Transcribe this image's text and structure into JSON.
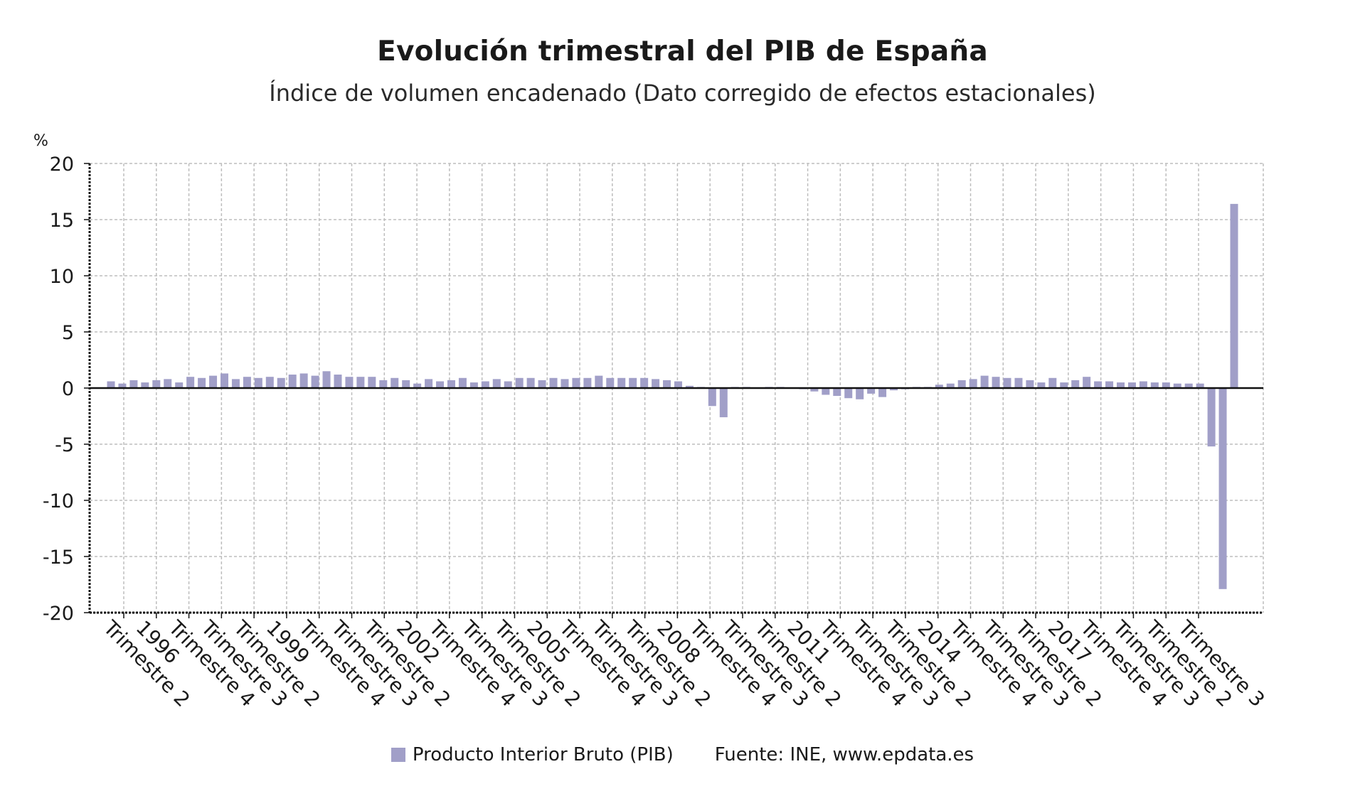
{
  "title": "Evolución trimestral del PIB de España",
  "subtitle": "Índice de volumen encadenado (Dato corregido de efectos estacionales)",
  "source": "Fuente: INE, www.epdata.es",
  "colors": {
    "bar": "#a19fc8",
    "grid": "#bdbdbd",
    "axis": "#111111"
  },
  "chart_data": {
    "type": "bar",
    "unit_label": "%",
    "ylim": [
      -20,
      20
    ],
    "y_ticks": [
      20,
      15,
      10,
      5,
      0,
      -5,
      -10,
      -15,
      -20
    ],
    "grid": true,
    "legend_position": "bottom",
    "x_tick_labels": [
      "Trimestre 2",
      "1996",
      "Trimestre 4",
      "Trimestre 3",
      "Trimestre 2",
      "1999",
      "Trimestre 4",
      "Trimestre 3",
      "Trimestre 2",
      "2002",
      "Trimestre 4",
      "Trimestre 3",
      "Trimestre 2",
      "2005",
      "Trimestre 4",
      "Trimestre 3",
      "Trimestre 2",
      "2008",
      "Trimestre 4",
      "Trimestre 3",
      "Trimestre 2",
      "2011",
      "Trimestre 4",
      "Trimestre 3",
      "Trimestre 2",
      "2014",
      "Trimestre 4",
      "Trimestre 3",
      "Trimestre 2",
      "2017",
      "Trimestre 4",
      "Trimestre 3",
      "Trimestre 2",
      "Trimestre 3"
    ],
    "series": [
      {
        "name": "Producto Interior Bruto (PIB)",
        "values": [
          0.6,
          0.4,
          0.7,
          0.5,
          0.7,
          0.8,
          0.5,
          1.0,
          0.9,
          1.1,
          1.3,
          0.8,
          1.0,
          0.9,
          1.0,
          0.9,
          1.2,
          1.3,
          1.1,
          1.5,
          1.2,
          1.0,
          1.0,
          1.0,
          0.7,
          0.9,
          0.7,
          0.4,
          0.8,
          0.6,
          0.7,
          0.9,
          0.5,
          0.6,
          0.8,
          0.6,
          0.9,
          0.9,
          0.7,
          0.9,
          0.8,
          0.9,
          0.9,
          1.1,
          0.9,
          0.9,
          0.9,
          0.9,
          0.8,
          0.7,
          0.6,
          0.2,
          0.1,
          -1.6,
          -2.6,
          0.1,
          0.1,
          0.0,
          0.1,
          0.1,
          0.0,
          -0.1,
          -0.3,
          -0.6,
          -0.7,
          -0.9,
          -1.0,
          -0.5,
          -0.8,
          -0.2,
          -0.1,
          0.1,
          0.1,
          0.3,
          0.4,
          0.7,
          0.8,
          1.1,
          1.0,
          0.9,
          0.9,
          0.7,
          0.5,
          0.9,
          0.5,
          0.7,
          1.0,
          0.6,
          0.6,
          0.5,
          0.5,
          0.6,
          0.5,
          0.5,
          0.4,
          0.4,
          0.4,
          -5.2,
          -17.9,
          16.4
        ]
      }
    ]
  }
}
